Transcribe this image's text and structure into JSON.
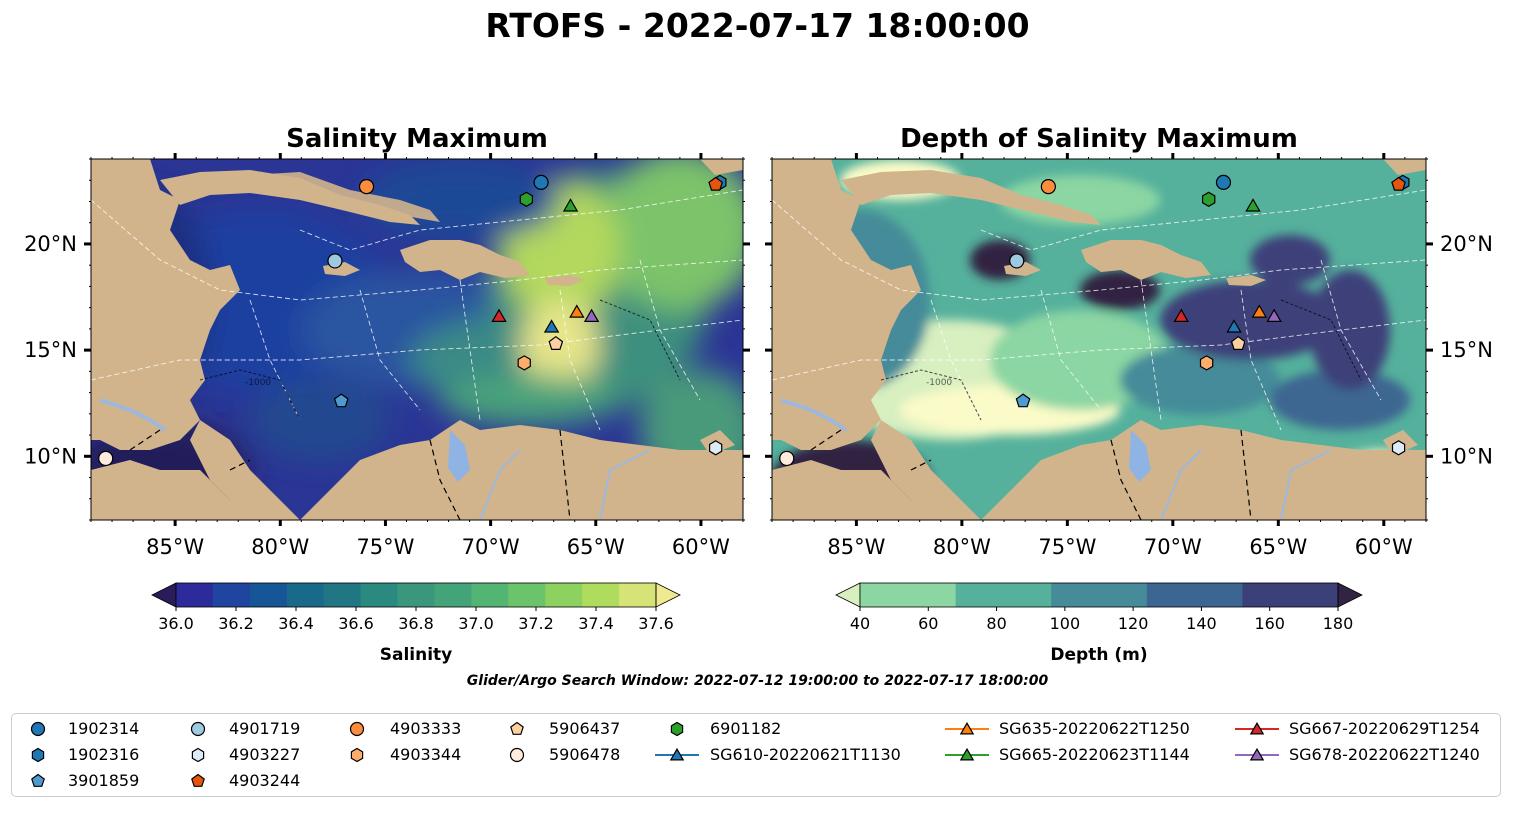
{
  "figure": {
    "suptitle": "RTOFS - 2022-07-17 18:00:00",
    "search_window": "Glider/Argo Search Window: 2022-07-12 19:00:00 to 2022-07-17 18:00:00"
  },
  "chart_data": [
    {
      "type": "heatmap",
      "title": "Salinity Maximum",
      "variable": "Salinity",
      "xlim": [
        -89,
        -58
      ],
      "ylim": [
        7,
        24
      ],
      "x_ticks": [
        "85°W",
        "80°W",
        "75°W",
        "70°W",
        "65°W",
        "60°W"
      ],
      "y_ticks": [
        "10°N",
        "15°N",
        "20°N"
      ],
      "colorbar": {
        "label": "Salinity",
        "ticks": [
          "36.0",
          "36.2",
          "36.4",
          "36.6",
          "36.8",
          "37.0",
          "37.2",
          "37.4",
          "37.6"
        ],
        "colors": [
          "#291c59",
          "#2d2b9b",
          "#1f45a0",
          "#165596",
          "#18698a",
          "#217683",
          "#2b8a80",
          "#3b977c",
          "#44a479",
          "#52b574",
          "#6cc46a",
          "#8dd161",
          "#b0dc5d",
          "#d6e376",
          "#efe98f"
        ]
      },
      "bathymetry_contour_label": "-1000"
    },
    {
      "type": "heatmap",
      "title": "Depth of Salinity Maximum",
      "variable": "Depth (m)",
      "xlim": [
        -89,
        -58
      ],
      "ylim": [
        7,
        24
      ],
      "x_ticks": [
        "85°W",
        "80°W",
        "75°W",
        "70°W",
        "65°W",
        "60°W"
      ],
      "y_ticks": [
        "10°N",
        "15°N",
        "20°N"
      ],
      "colorbar": {
        "label": "Depth (m)",
        "ticks": [
          "40",
          "60",
          "80",
          "100",
          "120",
          "140",
          "160",
          "180"
        ],
        "colors": [
          "#d8efc0",
          "#8bd6a3",
          "#55b19c",
          "#458b99",
          "#3c6691",
          "#3c4079",
          "#312442"
        ]
      },
      "bathymetry_contour_label": "-1000"
    }
  ],
  "observations": [
    {
      "id": "1902314",
      "marker": "circle",
      "color": "#1f77b4",
      "lon": -67.6,
      "lat": 22.9
    },
    {
      "id": "1902316",
      "marker": "hexagon",
      "color": "#1f77b4",
      "lon": -59.1,
      "lat": 22.9
    },
    {
      "id": "3901859",
      "marker": "pentagon",
      "color": "#4f9ad1",
      "lon": -77.1,
      "lat": 12.6
    },
    {
      "id": "4901719",
      "marker": "circle",
      "color": "#9ecae1",
      "lon": -77.4,
      "lat": 19.2
    },
    {
      "id": "4903227",
      "marker": "hexagon",
      "color": "#deebf7",
      "lon": -59.3,
      "lat": 10.4
    },
    {
      "id": "4903244",
      "marker": "pentagon",
      "color": "#e6550d",
      "lon": -59.3,
      "lat": 22.8
    },
    {
      "id": "4903333",
      "marker": "circle",
      "color": "#fd8d3c",
      "lon": -75.9,
      "lat": 22.7
    },
    {
      "id": "4903344",
      "marker": "hexagon",
      "color": "#fdae6b",
      "lon": -68.4,
      "lat": 14.4
    },
    {
      "id": "5906437",
      "marker": "pentagon",
      "color": "#fdd0a2",
      "lon": -66.9,
      "lat": 15.3
    },
    {
      "id": "5906478",
      "marker": "circle",
      "color": "#feeddc",
      "lon": -88.3,
      "lat": 9.9
    },
    {
      "id": "6901182",
      "marker": "hexagon",
      "color": "#2ca02c",
      "lon": -68.3,
      "lat": 22.1
    },
    {
      "id": "SG610-20220621T1130",
      "marker": "triangle",
      "color": "#1f77b4",
      "lon": -67.1,
      "lat": 16.1
    },
    {
      "id": "SG635-20220622T1250",
      "marker": "triangle",
      "color": "#ff7f0e",
      "lon": -65.9,
      "lat": 16.8
    },
    {
      "id": "SG665-20220623T1144",
      "marker": "triangle",
      "color": "#2ca02c",
      "lon": -66.2,
      "lat": 21.8
    },
    {
      "id": "SG667-20220629T1254",
      "marker": "triangle",
      "color": "#d62728",
      "lon": -69.6,
      "lat": 16.6
    },
    {
      "id": "SG678-20220622T1240",
      "marker": "triangle",
      "color": "#9467bd",
      "lon": -65.2,
      "lat": 16.6
    }
  ],
  "colors": {
    "land": "#d2b48c",
    "lake": "#8fb4e3",
    "river": "#9cb9dd",
    "eez": "#ffffff"
  }
}
